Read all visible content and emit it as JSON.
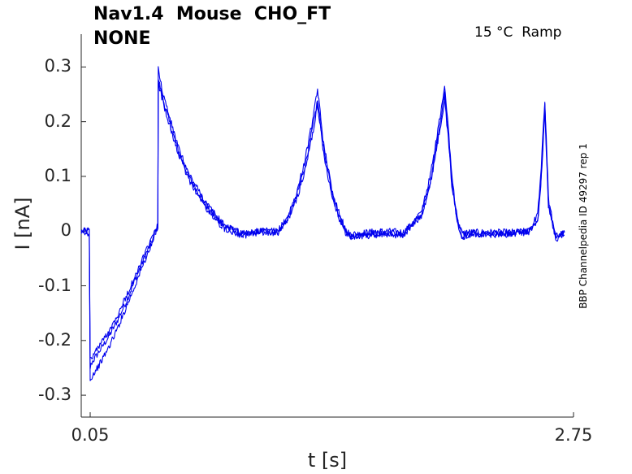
{
  "header": {
    "title_line1": "Nav1.4  Mouse  CHO_FT",
    "title_line2": "NONE",
    "conditions": "15 °C  Ramp",
    "side_label": "BBP Channelpedia ID 49297 rep 1"
  },
  "colors": {
    "trace": "#0000ee",
    "axis": "#262626"
  },
  "chart_data": {
    "type": "line",
    "xlabel": "t [s]",
    "ylabel": "I [nA]",
    "xlim": [
      0.0,
      2.75
    ],
    "ylim": [
      -0.34,
      0.36
    ],
    "x_ticks": [
      {
        "value": 0.05,
        "label": "0.05"
      },
      {
        "value": 2.75,
        "label": "2.75"
      }
    ],
    "y_ticks": [
      {
        "value": 0.3,
        "label": "0.3"
      },
      {
        "value": 0.2,
        "label": "0.2"
      },
      {
        "value": 0.1,
        "label": "0.1"
      },
      {
        "value": 0,
        "label": "0"
      },
      {
        "value": -0.1,
        "label": "-0.1"
      },
      {
        "value": -0.2,
        "label": "-0.2"
      },
      {
        "value": -0.3,
        "label": "-0.3"
      }
    ],
    "grid": false,
    "series": [
      {
        "x": [
          0.0,
          0.045,
          0.05,
          0.06,
          0.1,
          0.15,
          0.2,
          0.25,
          0.3,
          0.35,
          0.4,
          0.42,
          0.428,
          0.43,
          0.45,
          0.5,
          0.55,
          0.6,
          0.7,
          0.75,
          0.8,
          0.9,
          1.0,
          1.1,
          1.15,
          1.2,
          1.25,
          1.3,
          1.32,
          1.35,
          1.4,
          1.45,
          1.48,
          1.5,
          1.55,
          1.6,
          1.7,
          1.8,
          1.9,
          1.95,
          2.0,
          2.03,
          2.05,
          2.07,
          2.1,
          2.13,
          2.15,
          2.2,
          2.3,
          2.4,
          2.5,
          2.55,
          2.57,
          2.59,
          2.61,
          2.65,
          2.7
        ],
        "y": [
          0.0,
          0.0,
          -0.25,
          -0.24,
          -0.22,
          -0.195,
          -0.165,
          -0.13,
          -0.09,
          -0.05,
          -0.015,
          0.005,
          0.01,
          0.28,
          0.25,
          0.19,
          0.14,
          0.1,
          0.045,
          0.025,
          0.01,
          -0.005,
          0.0,
          -0.002,
          0.02,
          0.06,
          0.12,
          0.2,
          0.24,
          0.16,
          0.07,
          0.02,
          0.0,
          -0.005,
          -0.005,
          -0.002,
          0.0,
          -0.002,
          0.03,
          0.09,
          0.19,
          0.25,
          0.18,
          0.09,
          0.02,
          -0.005,
          -0.002,
          -0.002,
          -0.002,
          -0.002,
          0.0,
          0.02,
          0.1,
          0.23,
          0.05,
          -0.01,
          0.0
        ]
      },
      {
        "x": [
          0.0,
          0.045,
          0.05,
          0.06,
          0.1,
          0.15,
          0.2,
          0.25,
          0.3,
          0.35,
          0.4,
          0.42,
          0.428,
          0.43,
          0.45,
          0.5,
          0.55,
          0.6,
          0.7,
          0.75,
          0.8,
          0.9,
          1.0,
          1.1,
          1.15,
          1.2,
          1.25,
          1.3,
          1.32,
          1.35,
          1.4,
          1.45,
          1.48,
          1.5,
          1.55,
          1.6,
          1.7,
          1.8,
          1.9,
          1.95,
          2.0,
          2.03,
          2.05,
          2.07,
          2.1,
          2.13,
          2.15,
          2.2,
          2.3,
          2.4,
          2.5,
          2.55,
          2.57,
          2.59,
          2.61,
          2.65,
          2.7
        ],
        "y": [
          -0.005,
          -0.005,
          -0.275,
          -0.265,
          -0.245,
          -0.215,
          -0.18,
          -0.14,
          -0.1,
          -0.058,
          -0.02,
          0.0,
          0.01,
          0.3,
          0.26,
          0.2,
          0.145,
          0.105,
          0.05,
          0.03,
          0.01,
          -0.005,
          0.0,
          0.0,
          0.025,
          0.065,
          0.13,
          0.215,
          0.26,
          0.17,
          0.075,
          0.025,
          0.0,
          -0.01,
          -0.008,
          -0.005,
          -0.003,
          -0.005,
          0.035,
          0.1,
          0.2,
          0.26,
          0.19,
          0.1,
          0.025,
          -0.01,
          -0.005,
          -0.005,
          -0.005,
          -0.005,
          0.0,
          0.03,
          0.12,
          0.24,
          0.06,
          -0.015,
          -0.003
        ]
      },
      {
        "x": [
          0.0,
          0.045,
          0.05,
          0.06,
          0.1,
          0.15,
          0.2,
          0.25,
          0.3,
          0.35,
          0.4,
          0.42,
          0.428,
          0.43,
          0.45,
          0.5,
          0.55,
          0.6,
          0.7,
          0.75,
          0.8,
          0.9,
          1.0,
          1.1,
          1.15,
          1.2,
          1.25,
          1.3,
          1.32,
          1.35,
          1.4,
          1.45,
          1.48,
          1.5,
          1.55,
          1.6,
          1.7,
          1.8,
          1.9,
          1.95,
          2.0,
          2.03,
          2.05,
          2.07,
          2.1,
          2.13,
          2.15,
          2.2,
          2.3,
          2.4,
          2.5,
          2.55,
          2.57,
          2.59,
          2.61,
          2.65,
          2.7
        ],
        "y": [
          0.002,
          0.002,
          -0.235,
          -0.23,
          -0.21,
          -0.185,
          -0.155,
          -0.12,
          -0.085,
          -0.045,
          -0.01,
          0.005,
          0.01,
          0.27,
          0.245,
          0.185,
          0.135,
          0.095,
          0.04,
          0.02,
          0.005,
          -0.008,
          -0.003,
          -0.004,
          0.018,
          0.055,
          0.11,
          0.19,
          0.235,
          0.15,
          0.065,
          0.015,
          -0.004,
          -0.012,
          -0.01,
          -0.008,
          -0.006,
          -0.008,
          0.028,
          0.085,
          0.18,
          0.24,
          0.17,
          0.085,
          0.018,
          -0.012,
          -0.008,
          -0.006,
          -0.006,
          -0.006,
          -0.002,
          0.018,
          0.095,
          0.22,
          0.045,
          -0.012,
          -0.004
        ]
      }
    ]
  }
}
